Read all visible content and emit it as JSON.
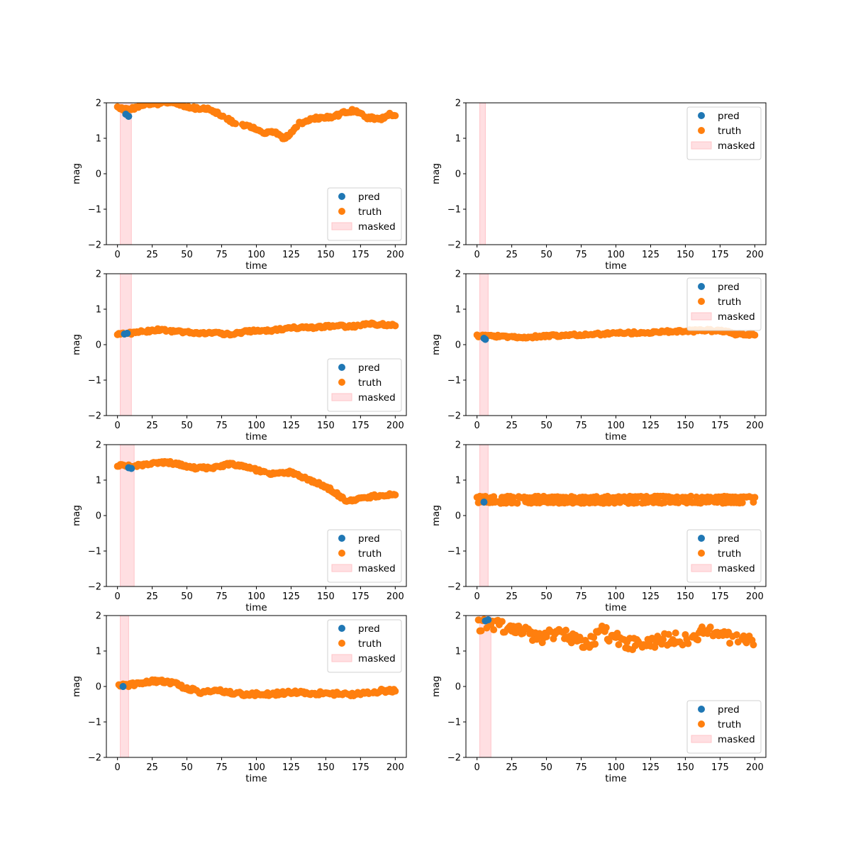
{
  "colors": {
    "pred": "#1f77b4",
    "truth": "#ff7f0e",
    "masked_fill": "#ffdfe2",
    "masked_edge": "#ffc4c8"
  },
  "chart_data": [
    {
      "type": "scatter",
      "xlabel": "time",
      "ylabel": "mag",
      "xlim": [
        -8,
        208
      ],
      "ylim": [
        -2,
        2
      ],
      "xticks": [
        0,
        25,
        50,
        75,
        100,
        125,
        150,
        175,
        200
      ],
      "yticks": [
        -2,
        -1,
        0,
        1,
        2
      ],
      "legend": {
        "placement": "lower-right",
        "entries": [
          "pred",
          "truth",
          "masked"
        ]
      },
      "masked": [
        2,
        10
      ],
      "truth_knots": [
        [
          0,
          1.85
        ],
        [
          5,
          1.83
        ],
        [
          10,
          1.82
        ],
        [
          15,
          1.9
        ],
        [
          20,
          1.98
        ],
        [
          30,
          1.98
        ],
        [
          40,
          2.0
        ],
        [
          45,
          1.95
        ],
        [
          55,
          1.85
        ],
        [
          65,
          1.85
        ],
        [
          75,
          1.65
        ],
        [
          85,
          1.4
        ],
        [
          95,
          1.35
        ],
        [
          105,
          1.12
        ],
        [
          112,
          1.2
        ],
        [
          120,
          0.98
        ],
        [
          125,
          1.15
        ],
        [
          130,
          1.4
        ],
        [
          140,
          1.55
        ],
        [
          155,
          1.6
        ],
        [
          165,
          1.75
        ],
        [
          170,
          1.78
        ],
        [
          180,
          1.58
        ],
        [
          190,
          1.55
        ],
        [
          195,
          1.68
        ],
        [
          200,
          1.62
        ]
      ],
      "truth_jitter": 0.04,
      "pred_points": [
        [
          6,
          1.68
        ],
        [
          8,
          1.62
        ]
      ]
    },
    {
      "type": "scatter",
      "xlabel": "time",
      "ylabel": "mag",
      "xlim": [
        -8,
        208
      ],
      "ylim": [
        -2,
        2
      ],
      "xticks": [
        0,
        25,
        50,
        75,
        100,
        125,
        150,
        175,
        200
      ],
      "yticks": [
        -2,
        -1,
        0,
        1,
        2
      ],
      "legend": {
        "placement": "upper-right",
        "entries": [
          "pred",
          "truth",
          "masked"
        ]
      },
      "masked": [
        2,
        6
      ],
      "truth_knots": [],
      "truth_jitter": 0,
      "pred_points": []
    },
    {
      "type": "scatter",
      "xlabel": "time",
      "ylabel": "mag",
      "xlim": [
        -8,
        208
      ],
      "ylim": [
        -2,
        2
      ],
      "xticks": [
        0,
        25,
        50,
        75,
        100,
        125,
        150,
        175,
        200
      ],
      "yticks": [
        -2,
        -1,
        0,
        1,
        2
      ],
      "legend": {
        "placement": "lower-right",
        "entries": [
          "pred",
          "truth",
          "masked"
        ]
      },
      "masked": [
        2,
        10
      ],
      "truth_knots": [
        [
          0,
          0.28
        ],
        [
          15,
          0.35
        ],
        [
          30,
          0.42
        ],
        [
          50,
          0.35
        ],
        [
          70,
          0.32
        ],
        [
          80,
          0.3
        ],
        [
          95,
          0.38
        ],
        [
          110,
          0.4
        ],
        [
          125,
          0.48
        ],
        [
          140,
          0.48
        ],
        [
          155,
          0.52
        ],
        [
          170,
          0.52
        ],
        [
          180,
          0.58
        ],
        [
          200,
          0.55
        ]
      ],
      "truth_jitter": 0.035,
      "pred_points": [
        [
          5,
          0.3
        ],
        [
          7,
          0.32
        ]
      ]
    },
    {
      "type": "scatter",
      "xlabel": "time",
      "ylabel": "mag",
      "xlim": [
        -8,
        208
      ],
      "ylim": [
        -2,
        2
      ],
      "xticks": [
        0,
        25,
        50,
        75,
        100,
        125,
        150,
        175,
        200
      ],
      "yticks": [
        -2,
        -1,
        0,
        1,
        2
      ],
      "legend": {
        "placement": "upper-right",
        "entries": [
          "pred",
          "truth",
          "masked"
        ]
      },
      "masked": [
        2,
        8
      ],
      "truth_knots": [
        [
          0,
          0.25
        ],
        [
          10,
          0.25
        ],
        [
          20,
          0.22
        ],
        [
          30,
          0.2
        ],
        [
          50,
          0.25
        ],
        [
          75,
          0.28
        ],
        [
          100,
          0.32
        ],
        [
          125,
          0.35
        ],
        [
          150,
          0.38
        ],
        [
          165,
          0.4
        ],
        [
          175,
          0.38
        ],
        [
          190,
          0.28
        ],
        [
          200,
          0.3
        ]
      ],
      "truth_jitter": 0.035,
      "pred_points": [
        [
          5,
          0.18
        ],
        [
          6,
          0.15
        ]
      ]
    },
    {
      "type": "scatter",
      "xlabel": "time",
      "ylabel": "mag",
      "xlim": [
        -8,
        208
      ],
      "ylim": [
        -2,
        2
      ],
      "xticks": [
        0,
        25,
        50,
        75,
        100,
        125,
        150,
        175,
        200
      ],
      "yticks": [
        -2,
        -1,
        0,
        1,
        2
      ],
      "legend": {
        "placement": "lower-right",
        "entries": [
          "pred",
          "truth",
          "masked"
        ]
      },
      "masked": [
        2,
        12
      ],
      "truth_knots": [
        [
          0,
          1.42
        ],
        [
          10,
          1.38
        ],
        [
          20,
          1.45
        ],
        [
          35,
          1.5
        ],
        [
          45,
          1.45
        ],
        [
          55,
          1.35
        ],
        [
          70,
          1.35
        ],
        [
          80,
          1.45
        ],
        [
          90,
          1.4
        ],
        [
          100,
          1.28
        ],
        [
          110,
          1.18
        ],
        [
          125,
          1.22
        ],
        [
          135,
          1.05
        ],
        [
          145,
          0.9
        ],
        [
          155,
          0.7
        ],
        [
          165,
          0.4
        ],
        [
          175,
          0.5
        ],
        [
          185,
          0.55
        ],
        [
          200,
          0.6
        ]
      ],
      "truth_jitter": 0.04,
      "pred_points": [
        [
          8,
          1.35
        ],
        [
          10,
          1.33
        ]
      ]
    },
    {
      "type": "scatter",
      "xlabel": "time",
      "ylabel": "mag",
      "xlim": [
        -8,
        208
      ],
      "ylim": [
        -2,
        2
      ],
      "xticks": [
        0,
        25,
        50,
        75,
        100,
        125,
        150,
        175,
        200
      ],
      "yticks": [
        -2,
        -1,
        0,
        1,
        2
      ],
      "legend": {
        "placement": "lower-right",
        "entries": [
          "pred",
          "truth",
          "masked"
        ]
      },
      "masked": [
        2,
        8
      ],
      "truth_knots": [],
      "truth_alternating": {
        "high": 0.52,
        "low": 0.37
      },
      "truth_jitter": 0.025,
      "pred_points": [
        [
          5,
          0.38
        ]
      ]
    },
    {
      "type": "scatter",
      "xlabel": "time",
      "ylabel": "mag",
      "xlim": [
        -8,
        208
      ],
      "ylim": [
        -2,
        2
      ],
      "xticks": [
        0,
        25,
        50,
        75,
        100,
        125,
        150,
        175,
        200
      ],
      "yticks": [
        -2,
        -1,
        0,
        1,
        2
      ],
      "legend": {
        "placement": "upper-right",
        "entries": [
          "pred",
          "truth",
          "masked"
        ]
      },
      "masked": [
        2,
        8
      ],
      "truth_knots": [
        [
          0,
          0.02
        ],
        [
          10,
          0.05
        ],
        [
          20,
          0.12
        ],
        [
          30,
          0.15
        ],
        [
          40,
          0.1
        ],
        [
          50,
          -0.05
        ],
        [
          60,
          -0.15
        ],
        [
          75,
          -0.12
        ],
        [
          90,
          -0.22
        ],
        [
          110,
          -0.22
        ],
        [
          125,
          -0.15
        ],
        [
          150,
          -0.2
        ],
        [
          175,
          -0.22
        ],
        [
          190,
          -0.12
        ],
        [
          200,
          -0.12
        ]
      ],
      "truth_jitter": 0.05,
      "pred_points": [
        [
          4,
          0.0
        ]
      ]
    },
    {
      "type": "scatter",
      "xlabel": "time",
      "ylabel": "mag",
      "xlim": [
        -8,
        208
      ],
      "ylim": [
        -2,
        2
      ],
      "xticks": [
        0,
        25,
        50,
        75,
        100,
        125,
        150,
        175,
        200
      ],
      "yticks": [
        -2,
        -1,
        0,
        1,
        2
      ],
      "legend": {
        "placement": "lower-right",
        "entries": [
          "pred",
          "truth",
          "masked"
        ]
      },
      "masked": [
        2,
        10
      ],
      "truth_knots": [
        [
          0,
          1.7
        ],
        [
          10,
          1.8
        ],
        [
          20,
          1.65
        ],
        [
          30,
          1.55
        ],
        [
          40,
          1.45
        ],
        [
          50,
          1.4
        ],
        [
          60,
          1.5
        ],
        [
          70,
          1.35
        ],
        [
          80,
          1.2
        ],
        [
          90,
          1.55
        ],
        [
          100,
          1.35
        ],
        [
          110,
          1.2
        ],
        [
          120,
          1.15
        ],
        [
          130,
          1.3
        ],
        [
          140,
          1.35
        ],
        [
          150,
          1.35
        ],
        [
          160,
          1.5
        ],
        [
          170,
          1.55
        ],
        [
          180,
          1.4
        ],
        [
          190,
          1.35
        ],
        [
          200,
          1.2
        ]
      ],
      "truth_jitter": 0.18,
      "pred_points": [
        [
          6,
          1.85
        ],
        [
          8,
          1.88
        ]
      ]
    }
  ]
}
